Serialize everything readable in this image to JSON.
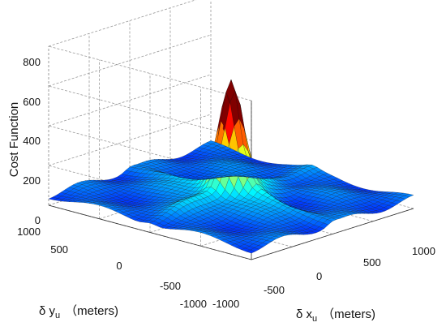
{
  "chart_data": {
    "type": "surface3d",
    "zlabel": "Cost Function",
    "xlabel": {
      "symbol": "δ x",
      "sub": "u",
      "unit": "（meters)"
    },
    "ylabel": {
      "symbol": "δ y",
      "sub": "u",
      "unit": "（meters)"
    },
    "xlim": [
      -1000,
      1000
    ],
    "ylim": [
      -1000,
      1000
    ],
    "zlim": [
      0,
      800
    ],
    "x_ticks": [
      "-1000",
      "-500",
      "0",
      "500",
      "1000"
    ],
    "y_ticks": [
      "-1000",
      "-500",
      "0",
      "500",
      "1000"
    ],
    "z_ticks": [
      "0",
      "200",
      "400",
      "600",
      "800"
    ],
    "peak": {
      "x": 0,
      "y": 0,
      "z": 490
    },
    "background_level": 50,
    "colormap": "jet",
    "grid": true
  }
}
